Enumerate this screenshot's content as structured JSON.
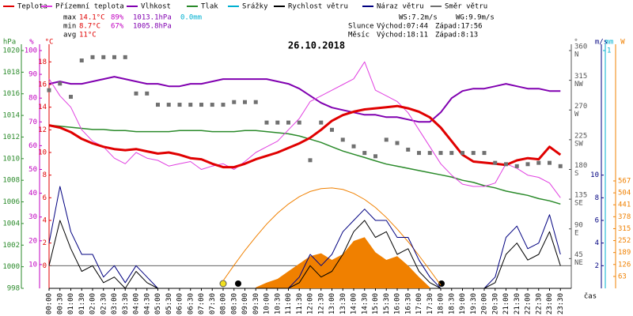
{
  "chart_data": {
    "type": "line",
    "title": "26.10.2018",
    "legend": [
      "Teplota",
      "Přízemní teplota",
      "Vlhkost",
      "Tlak",
      "Srážky",
      "Rychlost větru",
      "Náraz větru",
      "Směr větru"
    ],
    "legend_colors": [
      "#e00000",
      "#e040e0",
      "#8000b0",
      "#2a8a2a",
      "#00b0d0",
      "#000000",
      "#000080",
      "#707070"
    ],
    "stats": [
      [
        "max",
        "14.1°C",
        "89%",
        "1013.1hPa",
        "0.0mm"
      ],
      [
        "min",
        "8.7°C",
        "67%",
        "1005.8hPa"
      ],
      [
        "avg",
        "11°C"
      ]
    ],
    "info": [
      [
        "WS:7.2m/s",
        "WG:9.9m/s"
      ],
      [
        "Slunce",
        "Východ:07:44",
        "Západ:17:56"
      ],
      [
        "Měsíc",
        "Východ:18:11",
        "Západ:8:13"
      ]
    ],
    "x_label": "čas",
    "xlim": [
      0,
      24
    ],
    "x": [
      0,
      0.5,
      1,
      1.5,
      2,
      2.5,
      3,
      3.5,
      4,
      4.5,
      5,
      5.5,
      6,
      6.5,
      7,
      7.5,
      8,
      8.5,
      9,
      9.5,
      10,
      10.5,
      11,
      11.5,
      12,
      12.5,
      13,
      13.5,
      14,
      14.5,
      15,
      15.5,
      16,
      16.5,
      17,
      17.5,
      18,
      18.5,
      19,
      19.5,
      20,
      20.5,
      21,
      21.5,
      22,
      22.5,
      23,
      23.5
    ],
    "xticks": [
      {
        "value": 0,
        "label": "00:00"
      },
      {
        "value": 0.5,
        "label": "00:30"
      },
      {
        "value": 1,
        "label": "01:00"
      },
      {
        "value": 1.5,
        "label": "01:30"
      },
      {
        "value": 2,
        "label": "02:00"
      },
      {
        "value": 2.5,
        "label": "02:30"
      },
      {
        "value": 3,
        "label": "03:00"
      },
      {
        "value": 3.5,
        "label": "03:30"
      },
      {
        "value": 4,
        "label": "04:00"
      },
      {
        "value": 4.5,
        "label": "04:30"
      },
      {
        "value": 5,
        "label": "05:00"
      },
      {
        "value": 5.5,
        "label": "05:30"
      },
      {
        "value": 6,
        "label": "06:00"
      },
      {
        "value": 6.5,
        "label": "06:30"
      },
      {
        "value": 7,
        "label": "07:00"
      },
      {
        "value": 7.5,
        "label": "07:30"
      },
      {
        "value": 8,
        "label": "08:00"
      },
      {
        "value": 8.5,
        "label": "08:30"
      },
      {
        "value": 9,
        "label": "09:00"
      },
      {
        "value": 9.5,
        "label": "09:30"
      },
      {
        "value": 10,
        "label": "10:00"
      },
      {
        "value": 10.5,
        "label": "10:30"
      },
      {
        "value": 11,
        "label": "11:00"
      },
      {
        "value": 11.5,
        "label": "11:30"
      },
      {
        "value": 12,
        "label": "12:00"
      },
      {
        "value": 12.5,
        "label": "12:30"
      },
      {
        "value": 13,
        "label": "13:00"
      },
      {
        "value": 13.5,
        "label": "13:30"
      },
      {
        "value": 14,
        "label": "14:00"
      },
      {
        "value": 14.5,
        "label": "14:30"
      },
      {
        "value": 15,
        "label": "15:00"
      },
      {
        "value": 15.5,
        "label": "15:30"
      },
      {
        "value": 16,
        "label": "16:00"
      },
      {
        "value": 16.5,
        "label": "16:30"
      },
      {
        "value": 17,
        "label": "17:00"
      },
      {
        "value": 17.5,
        "label": "17:30"
      },
      {
        "value": 18,
        "label": "18:00"
      },
      {
        "value": 18.5,
        "label": "18:30"
      },
      {
        "value": 19,
        "label": "19:00"
      },
      {
        "value": 19.5,
        "label": "19:30"
      },
      {
        "value": 20,
        "label": "20:00"
      },
      {
        "value": 20.5,
        "label": "20:30"
      },
      {
        "value": 21,
        "label": "21:00"
      },
      {
        "value": 21.5,
        "label": "21:30"
      },
      {
        "value": 22,
        "label": "22:00"
      },
      {
        "value": 22.5,
        "label": "22:30"
      },
      {
        "value": 23,
        "label": "23:00"
      },
      {
        "value": 23.5,
        "label": "23:30"
      }
    ],
    "axes": {
      "hpa": {
        "label": "hPa",
        "color": "#2a8a2a",
        "lim": [
          998,
          1020
        ],
        "ticks": [
          998,
          1000,
          1002,
          1004,
          1006,
          1008,
          1010,
          1012,
          1014,
          1016,
          1018,
          1020
        ]
      },
      "pct": {
        "label": "%",
        "color": "#c000c0",
        "lim": [
          0,
          100
        ],
        "ticks": [
          10,
          20,
          30,
          40,
          50,
          60,
          70,
          80,
          90,
          100
        ]
      },
      "temp": {
        "label": "°C",
        "color": "#e00000",
        "lim": [
          -2,
          19
        ],
        "ticks": [
          0,
          2,
          4,
          6,
          8,
          10,
          12,
          14,
          16,
          18
        ]
      },
      "dir": {
        "label": "°",
        "color": "#555555",
        "lim": [
          0,
          360
        ],
        "ticks": [
          45,
          90,
          135,
          180,
          225,
          270,
          315,
          360
        ],
        "names": [
          "NE",
          "E",
          "SE",
          "S",
          "SW",
          "W",
          "NW",
          "N"
        ]
      },
      "ms": {
        "label": "m/s",
        "color": "#000080",
        "lim": [
          0,
          21
        ],
        "ticks": [
          2,
          4,
          6,
          8,
          10
        ]
      },
      "mm": {
        "label": "mm",
        "color": "#00b0d0",
        "lim": [
          0,
          1
        ],
        "ticks": [
          1
        ]
      },
      "w": {
        "label": "W",
        "color": "#f08000",
        "lim": [
          0,
          1255
        ],
        "ticks": [
          63,
          126,
          189,
          252,
          315,
          378,
          441,
          504,
          567
        ]
      }
    },
    "solar_measured": {
      "color": "#f08000",
      "axis": "w",
      "values": [
        null,
        null,
        null,
        null,
        null,
        null,
        null,
        null,
        null,
        null,
        null,
        null,
        null,
        null,
        null,
        null,
        null,
        null,
        null,
        5,
        30,
        50,
        90,
        130,
        170,
        185,
        150,
        180,
        250,
        270,
        190,
        150,
        170,
        120,
        60,
        5,
        null,
        null,
        null,
        null,
        null,
        null,
        null,
        null,
        null,
        null,
        null,
        null
      ]
    },
    "solar_clear": {
      "color": "#f08000",
      "axis": "w",
      "values": [
        null,
        null,
        null,
        null,
        null,
        null,
        null,
        null,
        null,
        null,
        null,
        null,
        null,
        null,
        null,
        null,
        40,
        122,
        200,
        272,
        339,
        397,
        445,
        484,
        511,
        526,
        530,
        522,
        501,
        469,
        427,
        374,
        313,
        246,
        173,
        96,
        17,
        null,
        null,
        null,
        null,
        null,
        null,
        null,
        null,
        null,
        null,
        null
      ]
    },
    "series": [
      {
        "name": "Tlak",
        "color": "#2a8a2a",
        "axis": "hpa",
        "width": 1.5,
        "values": [
          1013.1,
          1013.0,
          1012.9,
          1012.8,
          1012.7,
          1012.7,
          1012.6,
          1012.6,
          1012.5,
          1012.5,
          1012.5,
          1012.5,
          1012.6,
          1012.6,
          1012.6,
          1012.5,
          1012.5,
          1012.5,
          1012.6,
          1012.6,
          1012.5,
          1012.4,
          1012.3,
          1012.1,
          1011.8,
          1011.5,
          1011.1,
          1010.7,
          1010.4,
          1010.1,
          1009.8,
          1009.5,
          1009.3,
          1009.1,
          1008.9,
          1008.7,
          1008.5,
          1008.3,
          1008.0,
          1007.8,
          1007.5,
          1007.3,
          1007.0,
          1006.8,
          1006.6,
          1006.3,
          1006.1,
          1005.8
        ]
      },
      {
        "name": "Vlhkost",
        "color": "#8000b0",
        "axis": "pct",
        "width": 2,
        "values": [
          86,
          87,
          86,
          86,
          87,
          88,
          89,
          88,
          87,
          86,
          86,
          85,
          85,
          86,
          86,
          87,
          88,
          88,
          88,
          88,
          88,
          87,
          86,
          84,
          81,
          78,
          76,
          75,
          74,
          73,
          73,
          72,
          72,
          71,
          70,
          70,
          74,
          80,
          83,
          84,
          84,
          85,
          86,
          85,
          84,
          84,
          83,
          83
        ]
      },
      {
        "name": "Přízemní teplota",
        "color": "#e040e0",
        "axis": "temp",
        "width": 1,
        "values": [
          16.5,
          15,
          14,
          12,
          11,
          10.5,
          9.5,
          9,
          10,
          9.5,
          9.3,
          8.8,
          9,
          9.2,
          8.5,
          8.8,
          9,
          8.5,
          9.2,
          10,
          10.5,
          11,
          12,
          13,
          14.5,
          15,
          15.5,
          16,
          16.5,
          18,
          15.5,
          15,
          14.5,
          13.5,
          12,
          10.5,
          9,
          8,
          7.2,
          7,
          7,
          7.3,
          9,
          8.6,
          8,
          7.8,
          7.3,
          6
        ]
      },
      {
        "name": "Teplota",
        "color": "#e00000",
        "axis": "temp",
        "width": 3,
        "values": [
          12.4,
          12.2,
          11.8,
          11.2,
          10.8,
          10.5,
          10.3,
          10.2,
          10.3,
          10.1,
          9.9,
          10.0,
          9.8,
          9.5,
          9.4,
          9.0,
          8.7,
          8.7,
          9.0,
          9.4,
          9.7,
          10.0,
          10.4,
          10.8,
          11.3,
          12.0,
          12.8,
          13.3,
          13.6,
          13.8,
          13.9,
          14.0,
          14.1,
          13.9,
          13.6,
          13.1,
          12.2,
          11.0,
          9.8,
          9.2,
          9.1,
          9.0,
          8.9,
          9.3,
          9.5,
          9.4,
          10.5,
          9.8
        ]
      },
      {
        "name": "Náraz větru",
        "color": "#000080",
        "axis": "ms",
        "width": 1,
        "values": [
          4,
          9,
          5,
          3,
          3,
          1,
          2,
          0.5,
          2,
          1,
          0,
          0,
          0,
          0,
          0,
          0,
          0,
          0,
          0,
          0,
          0,
          0,
          0,
          1,
          3,
          2,
          3,
          5,
          6,
          7,
          6,
          6,
          4.5,
          4.5,
          2.5,
          1,
          0,
          0,
          0,
          0,
          0,
          1,
          4.5,
          5.5,
          3.5,
          4,
          6.5,
          3
        ]
      },
      {
        "name": "Rychlost větru",
        "color": "#000000",
        "axis": "ms",
        "width": 1,
        "values": [
          2,
          6,
          3.5,
          1.5,
          2,
          0.5,
          1,
          0,
          1.5,
          0.5,
          0,
          0,
          0,
          0,
          0,
          0,
          0,
          0,
          0,
          0,
          0,
          0,
          0,
          0.5,
          2,
          1,
          1.5,
          3,
          5,
          6,
          4.5,
          5,
          3,
          3.5,
          1.5,
          0.5,
          0,
          0,
          0,
          0,
          0,
          0.5,
          3,
          4,
          2.5,
          3,
          5,
          2
        ]
      },
      {
        "name": "Směr větru",
        "color": "#707070",
        "axis": "dir",
        "marker": "square",
        "values": [
          300,
          310,
          290,
          345,
          350,
          350,
          350,
          350,
          295,
          295,
          278,
          278,
          278,
          278,
          278,
          278,
          278,
          282,
          282,
          282,
          251,
          251,
          251,
          251,
          194,
          251,
          240,
          225,
          215,
          205,
          200,
          225,
          220,
          210,
          205,
          205,
          205,
          205,
          205,
          205,
          205,
          190,
          188,
          185,
          188,
          190,
          190,
          185
        ]
      }
    ]
  }
}
